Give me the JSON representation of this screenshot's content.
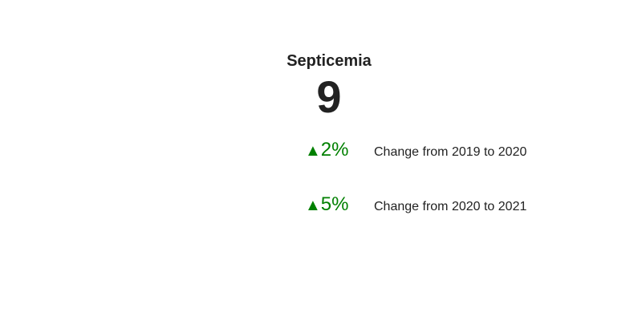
{
  "chart_data": {
    "type": "indicator",
    "title": "Septicemia",
    "value": 9,
    "value_text": "9",
    "deltas": [
      {
        "arrow": "▲",
        "direction": "increase",
        "value_text": "2%",
        "percent": 2,
        "label": "Change from 2019 to 2020",
        "color": "#008000"
      },
      {
        "arrow": "▲",
        "direction": "increase",
        "value_text": "5%",
        "percent": 5,
        "label": "Change from 2020 to 2021",
        "color": "#008000"
      }
    ]
  },
  "colors": {
    "text": "#222222",
    "increase": "#008000",
    "background": "#ffffff"
  }
}
